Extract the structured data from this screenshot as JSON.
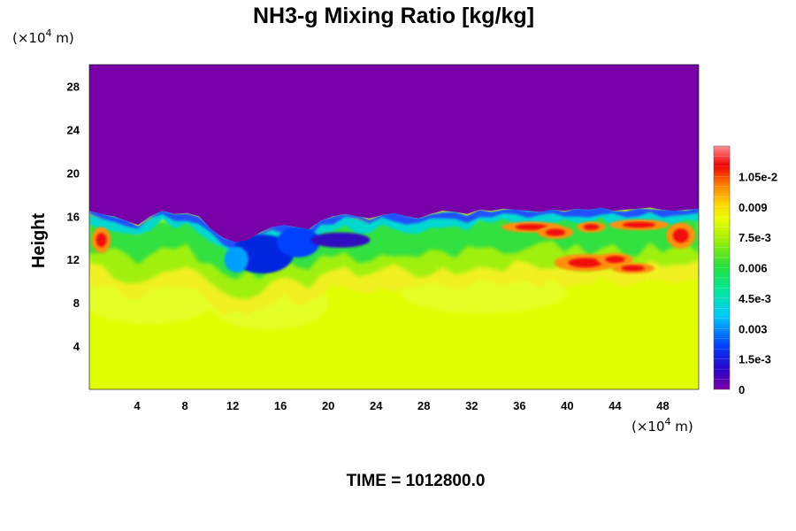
{
  "chart_data": {
    "type": "heatmap",
    "title": "NH3-g Mixing Ratio [kg/kg]",
    "ylabel": "Height",
    "x_unit": "(×10",
    "x_unit_exp": "4",
    "x_unit_suffix": " m)",
    "y_unit": "(×10",
    "y_unit_exp": "4",
    "y_unit_suffix": " m)",
    "x_ticks": [
      "4",
      "8",
      "12",
      "16",
      "20",
      "24",
      "28",
      "32",
      "36",
      "40",
      "44",
      "48"
    ],
    "y_ticks": [
      "4",
      "8",
      "12",
      "16",
      "20",
      "24",
      "28"
    ],
    "xlim": [
      0,
      51
    ],
    "ylim": [
      0,
      30
    ],
    "colorbar": {
      "labels": [
        "0",
        "1.5e-3",
        "0.003",
        "4.5e-3",
        "0.006",
        "7.5e-3",
        "0.009",
        "1.05e-2"
      ],
      "values": [
        0,
        0.0015,
        0.003,
        0.0045,
        0.006,
        0.0075,
        0.009,
        0.0105
      ],
      "max": 0.012
    },
    "field": {
      "lower_layer_value": 0.0078,
      "upper_layer_value": 0.0,
      "top_boundary_height": [
        16.5,
        16.2,
        16.0,
        15.6,
        15.2,
        16.0,
        16.5,
        16.2,
        16.3,
        16.0,
        14.8,
        14.0,
        13.6,
        13.8,
        14.5,
        15.0,
        15.2,
        15.0,
        14.8,
        15.6,
        16.0,
        16.2,
        16.0,
        15.8,
        16.1,
        16.3,
        16.0,
        15.8,
        16.2,
        16.5,
        16.4,
        16.2,
        16.6,
        16.5,
        16.7,
        16.6,
        16.5,
        16.4,
        16.6,
        16.5,
        16.7,
        16.6,
        16.8,
        16.5,
        16.6,
        16.7,
        16.8,
        16.6,
        16.5,
        16.6,
        16.7
      ]
    }
  },
  "footer": {
    "time_label": "TIME = 1012800.0"
  }
}
